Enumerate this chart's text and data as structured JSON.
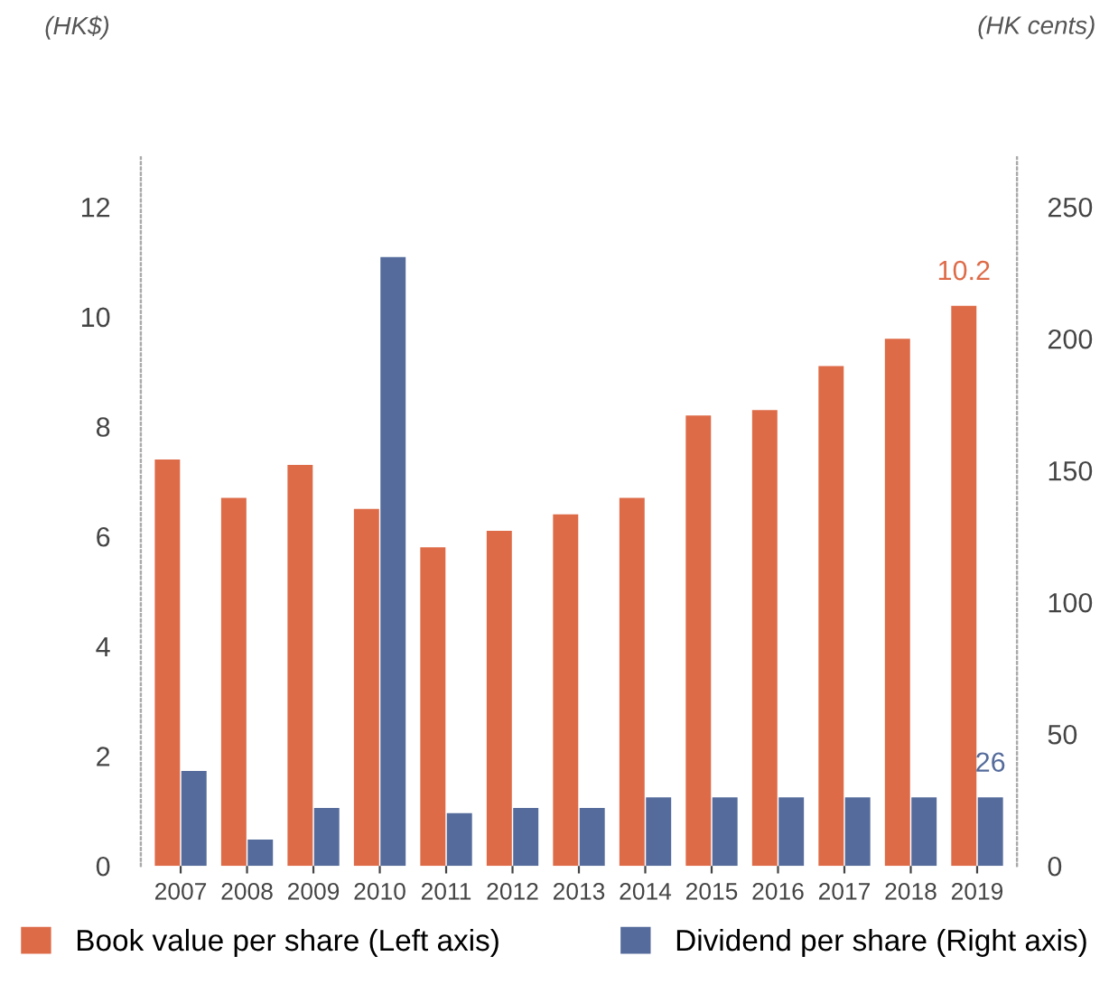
{
  "chart_data": {
    "type": "bar",
    "ylabel": "(HK$)",
    "y2label": "(HK cents)",
    "categories": [
      "2007",
      "2008",
      "2009",
      "2010",
      "2011",
      "2012",
      "2013",
      "2014",
      "2015",
      "2016",
      "2017",
      "2018",
      "2019"
    ],
    "series": [
      {
        "name": "Book value per share (Left axis)",
        "color": "#de6b48",
        "values": [
          7.4,
          6.7,
          7.3,
          6.5,
          5.8,
          6.1,
          6.4,
          6.7,
          8.2,
          8.3,
          9.1,
          9.6,
          10.2
        ],
        "value_labels": [
          null,
          null,
          null,
          null,
          null,
          null,
          null,
          null,
          null,
          null,
          null,
          null,
          "10.2"
        ]
      },
      {
        "name": "Dividend per share (Right axis)",
        "color": "#546b9b",
        "axis": "y2",
        "values": [
          36,
          10,
          22,
          231,
          20,
          22,
          22,
          26,
          26,
          26,
          26,
          26,
          26
        ],
        "value_labels": [
          null,
          null,
          null,
          null,
          null,
          null,
          null,
          null,
          null,
          null,
          null,
          null,
          "26"
        ]
      }
    ],
    "ylim": [
      0,
      12.9
    ],
    "yticks": [
      0,
      2,
      4,
      6,
      8,
      10,
      12
    ],
    "y2lim": [
      0,
      268.75
    ],
    "y2ticks": [
      0,
      50,
      100,
      150,
      200,
      250
    ],
    "grid": false,
    "legend": "bottom"
  }
}
